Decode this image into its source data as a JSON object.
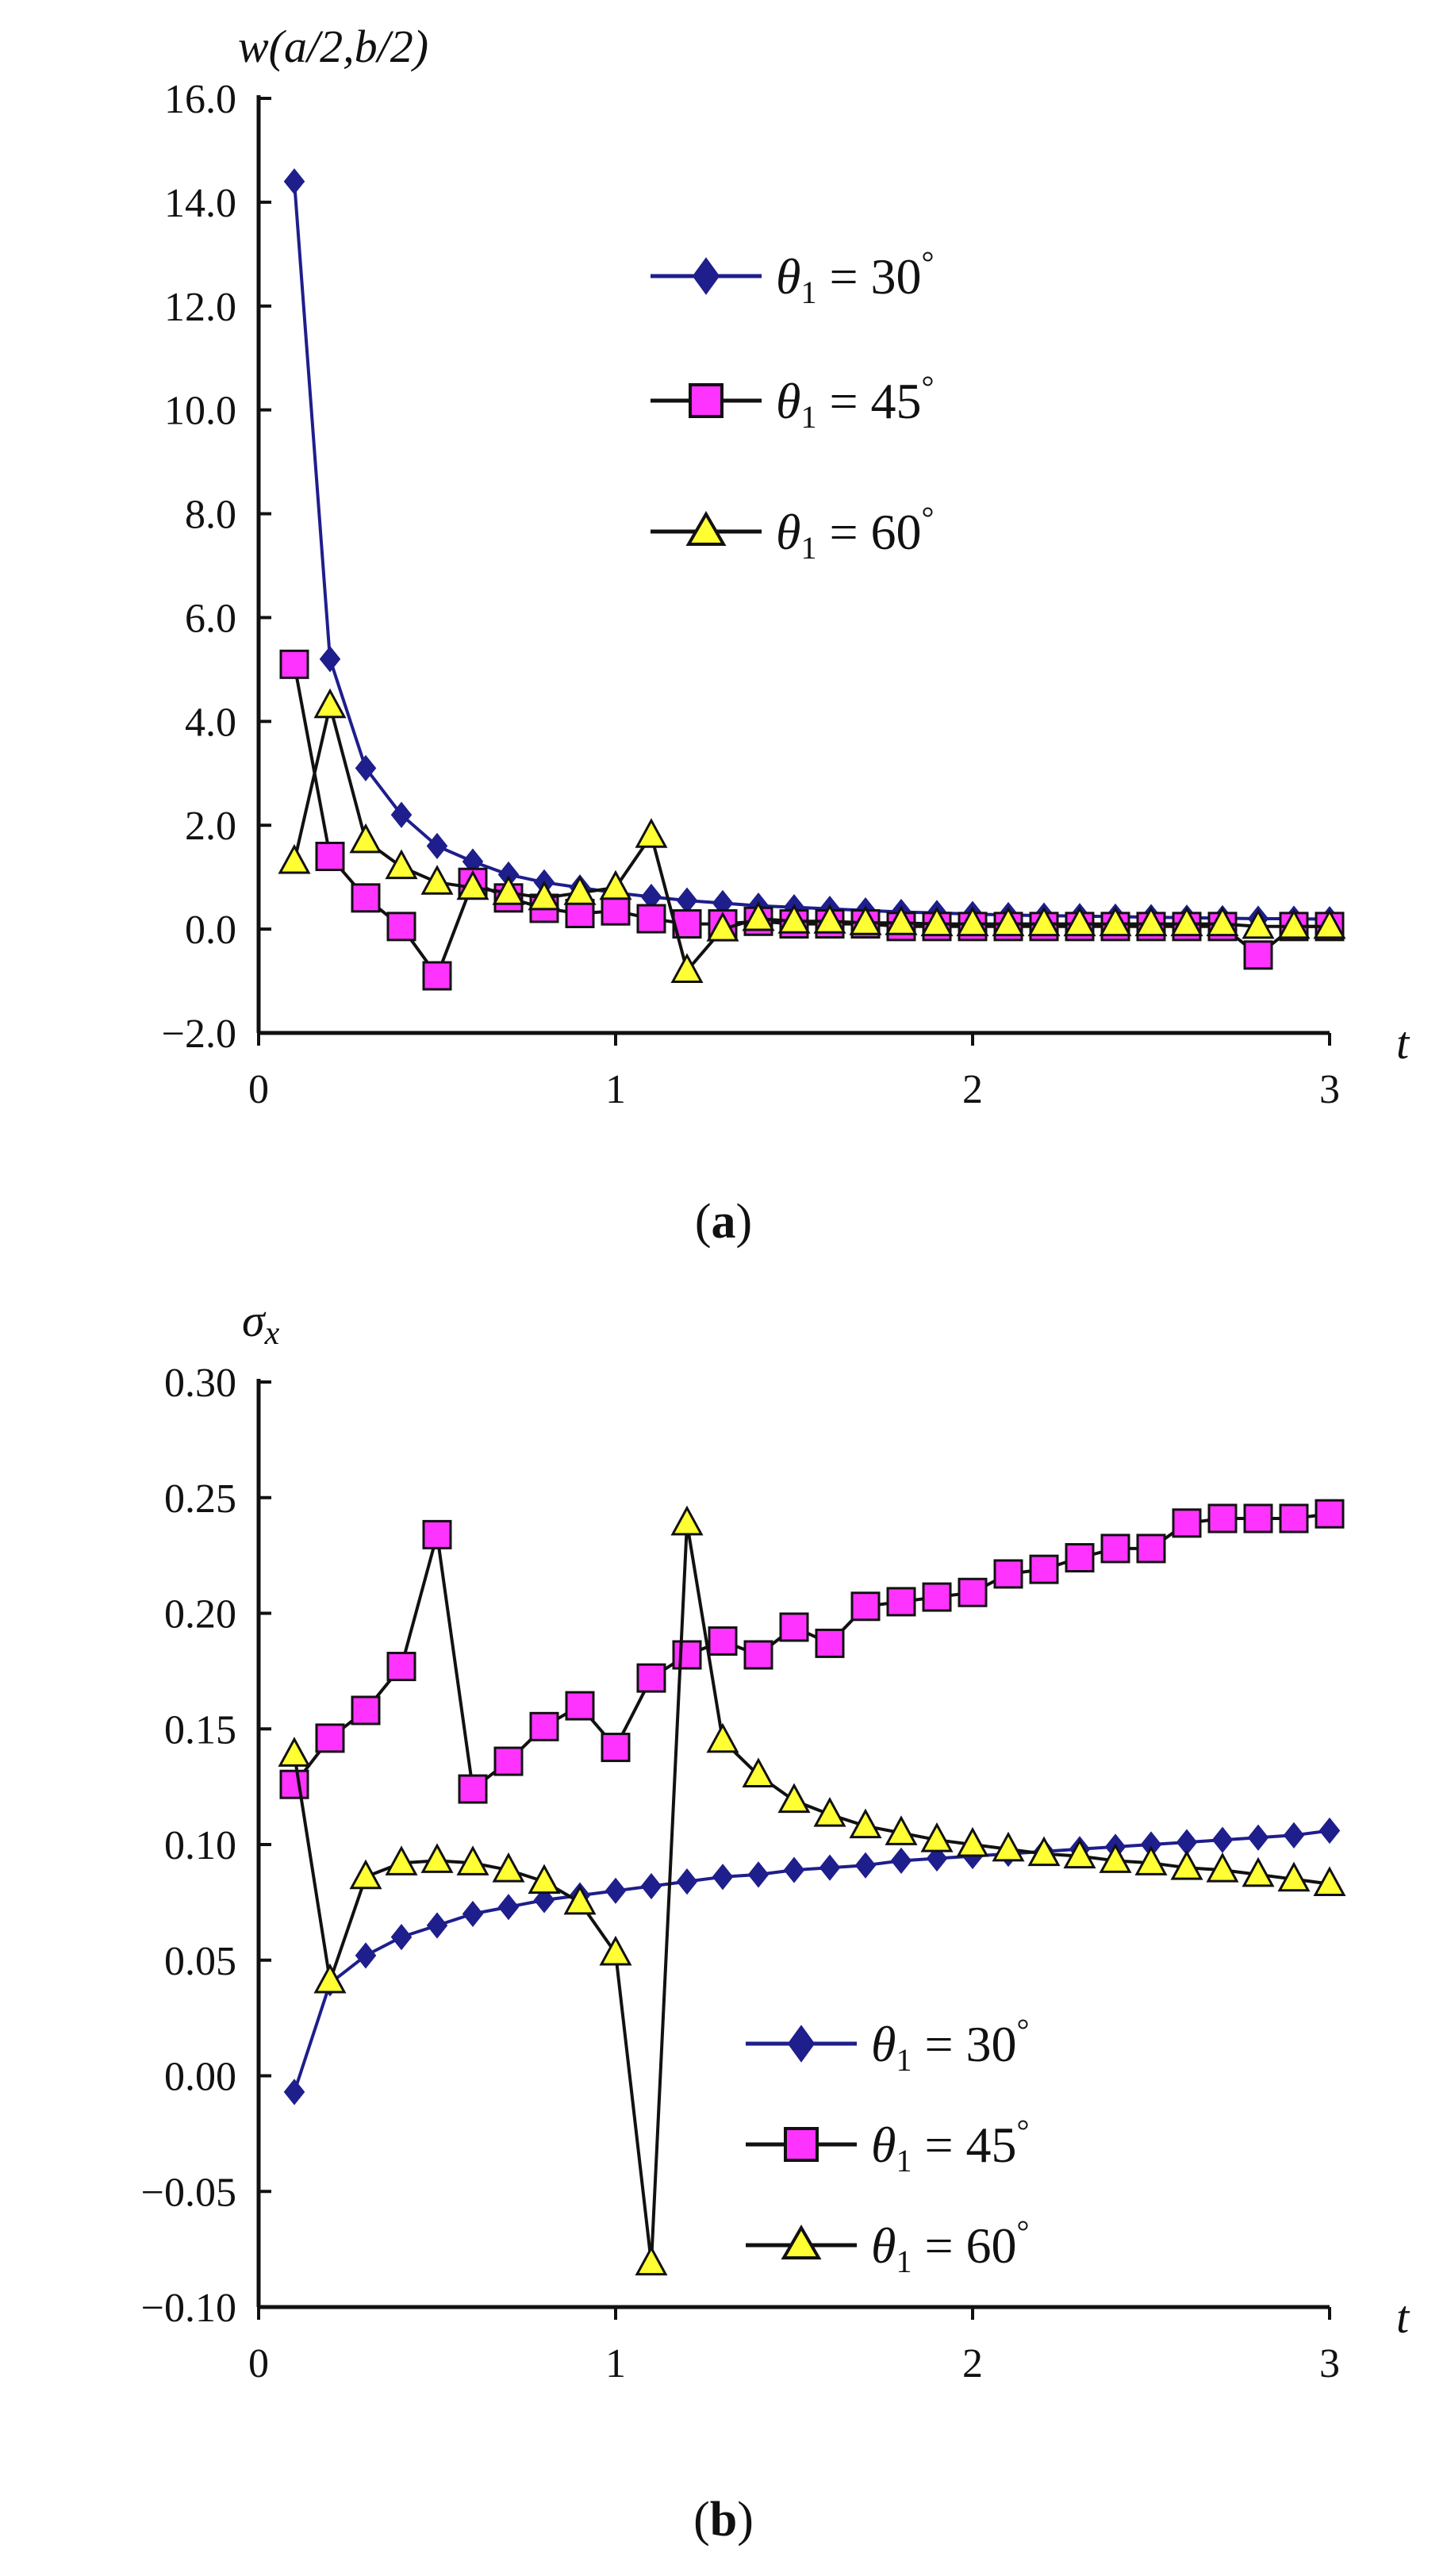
{
  "chart_data": [
    {
      "type": "line",
      "panel_caption": {
        "open": "(",
        "letter": "a",
        "close": ")"
      },
      "ylabel": "w(a/2,b/2)",
      "xlabel": "t",
      "xlim": [
        0,
        3
      ],
      "ylim": [
        -2.0,
        16.0
      ],
      "xticks": [
        "0",
        "1",
        "2",
        "3"
      ],
      "xtick_values": [
        0,
        1,
        2,
        3
      ],
      "yticks": [
        "16.0",
        "14.0",
        "12.0",
        "10.0",
        "8.0",
        "6.0",
        "4.0",
        "2.0",
        "0.0",
        "−2.0"
      ],
      "ytick_values": [
        16,
        14,
        12,
        10,
        8,
        6,
        4,
        2,
        0,
        -2
      ],
      "legend_position": "upper-middle",
      "x": [
        0.1,
        0.2,
        0.3,
        0.4,
        0.5,
        0.6,
        0.7,
        0.8,
        0.9,
        1.0,
        1.1,
        1.2,
        1.3,
        1.4,
        1.5,
        1.6,
        1.7,
        1.8,
        1.9,
        2.0,
        2.1,
        2.2,
        2.3,
        2.4,
        2.5,
        2.6,
        2.7,
        2.8,
        2.9,
        3.0
      ],
      "series": [
        {
          "name": "θ1 = 30°",
          "legend": {
            "sym": "θ",
            "sub": "1",
            "rest": " = 30",
            "deg": "°"
          },
          "marker": "diamond",
          "line_color": "#1e1e8c",
          "fill_color": "#1e1e8c",
          "values": [
            14.4,
            5.2,
            3.1,
            2.2,
            1.6,
            1.3,
            1.05,
            0.9,
            0.8,
            0.7,
            0.62,
            0.55,
            0.5,
            0.45,
            0.42,
            0.39,
            0.36,
            0.33,
            0.31,
            0.29,
            0.27,
            0.26,
            0.25,
            0.24,
            0.23,
            0.22,
            0.21,
            0.2,
            0.2,
            0.19
          ]
        },
        {
          "name": "θ1 = 45°",
          "legend": {
            "sym": "θ",
            "sub": "1",
            "rest": " = 45",
            "deg": "°"
          },
          "marker": "square",
          "line_color": "#111111",
          "fill_color": "#ff33ff",
          "values": [
            5.1,
            1.4,
            0.6,
            0.05,
            -0.9,
            0.9,
            0.6,
            0.4,
            0.3,
            0.35,
            0.2,
            0.1,
            0.1,
            0.15,
            0.1,
            0.1,
            0.1,
            0.05,
            0.05,
            0.05,
            0.05,
            0.05,
            0.05,
            0.05,
            0.05,
            0.05,
            0.05,
            -0.5,
            0.05,
            0.05
          ]
        },
        {
          "name": "θ1 = 60°",
          "legend": {
            "sym": "θ",
            "sub": "1",
            "rest": " = 60",
            "deg": "°"
          },
          "marker": "triangle",
          "line_color": "#111111",
          "fill_color": "#ffff33",
          "values": [
            1.3,
            4.3,
            1.7,
            1.2,
            0.9,
            0.8,
            0.7,
            0.6,
            0.7,
            0.8,
            1.8,
            -0.8,
            0.0,
            0.2,
            0.15,
            0.15,
            0.12,
            0.12,
            0.1,
            0.1,
            0.1,
            0.1,
            0.1,
            0.1,
            0.1,
            0.1,
            0.1,
            0.05,
            0.05,
            0.05
          ]
        }
      ]
    },
    {
      "type": "line",
      "panel_caption": {
        "open": "(",
        "letter": "b",
        "close": ")"
      },
      "ylabel": "σx",
      "ylabel_parts": {
        "sym": "σ",
        "sub": "x"
      },
      "xlabel": "t",
      "xlim": [
        0,
        3
      ],
      "ylim": [
        -0.1,
        0.3
      ],
      "xticks": [
        "0",
        "1",
        "2",
        "3"
      ],
      "xtick_values": [
        0,
        1,
        2,
        3
      ],
      "yticks": [
        "0.30",
        "0.25",
        "0.20",
        "0.15",
        "0.10",
        "0.05",
        "0.00",
        "−0.05",
        "−0.10"
      ],
      "ytick_values": [
        0.3,
        0.25,
        0.2,
        0.15,
        0.1,
        0.05,
        0.0,
        -0.05,
        -0.1
      ],
      "legend_position": "lower-right",
      "x": [
        0.1,
        0.2,
        0.3,
        0.4,
        0.5,
        0.6,
        0.7,
        0.8,
        0.9,
        1.0,
        1.1,
        1.2,
        1.3,
        1.4,
        1.5,
        1.6,
        1.7,
        1.8,
        1.9,
        2.0,
        2.1,
        2.2,
        2.3,
        2.4,
        2.5,
        2.6,
        2.7,
        2.8,
        2.9,
        3.0
      ],
      "series": [
        {
          "name": "θ1 = 30°",
          "legend": {
            "sym": "θ",
            "sub": "1",
            "rest": " = 30",
            "deg": "°"
          },
          "marker": "diamond",
          "line_color": "#1e1e8c",
          "fill_color": "#1e1e8c",
          "values": [
            -0.007,
            0.04,
            0.052,
            0.06,
            0.065,
            0.07,
            0.073,
            0.076,
            0.078,
            0.08,
            0.082,
            0.084,
            0.086,
            0.087,
            0.089,
            0.09,
            0.091,
            0.093,
            0.094,
            0.095,
            0.096,
            0.097,
            0.098,
            0.099,
            0.1,
            0.101,
            0.102,
            0.103,
            0.104,
            0.106
          ]
        },
        {
          "name": "θ1 = 45°",
          "legend": {
            "sym": "θ",
            "sub": "1",
            "rest": " = 45",
            "deg": "°"
          },
          "marker": "square",
          "line_color": "#111111",
          "fill_color": "#ff33ff",
          "values": [
            0.126,
            0.146,
            0.158,
            0.177,
            0.234,
            0.124,
            0.136,
            0.151,
            0.16,
            0.142,
            0.172,
            0.182,
            0.188,
            0.182,
            0.194,
            0.187,
            0.203,
            0.205,
            0.207,
            0.209,
            0.217,
            0.219,
            0.224,
            0.228,
            0.228,
            0.239,
            0.241,
            0.241,
            0.241,
            0.243
          ]
        },
        {
          "name": "θ1 = 60°",
          "legend": {
            "sym": "θ",
            "sub": "1",
            "rest": " = 60",
            "deg": "°"
          },
          "marker": "triangle",
          "line_color": "#111111",
          "fill_color": "#ffff33",
          "values": [
            0.139,
            0.041,
            0.086,
            0.092,
            0.093,
            0.092,
            0.089,
            0.084,
            0.075,
            0.053,
            -0.081,
            0.239,
            0.145,
            0.13,
            0.119,
            0.113,
            0.108,
            0.105,
            0.102,
            0.1,
            0.098,
            0.096,
            0.095,
            0.093,
            0.092,
            0.09,
            0.089,
            0.087,
            0.085,
            0.083
          ]
        }
      ]
    }
  ]
}
